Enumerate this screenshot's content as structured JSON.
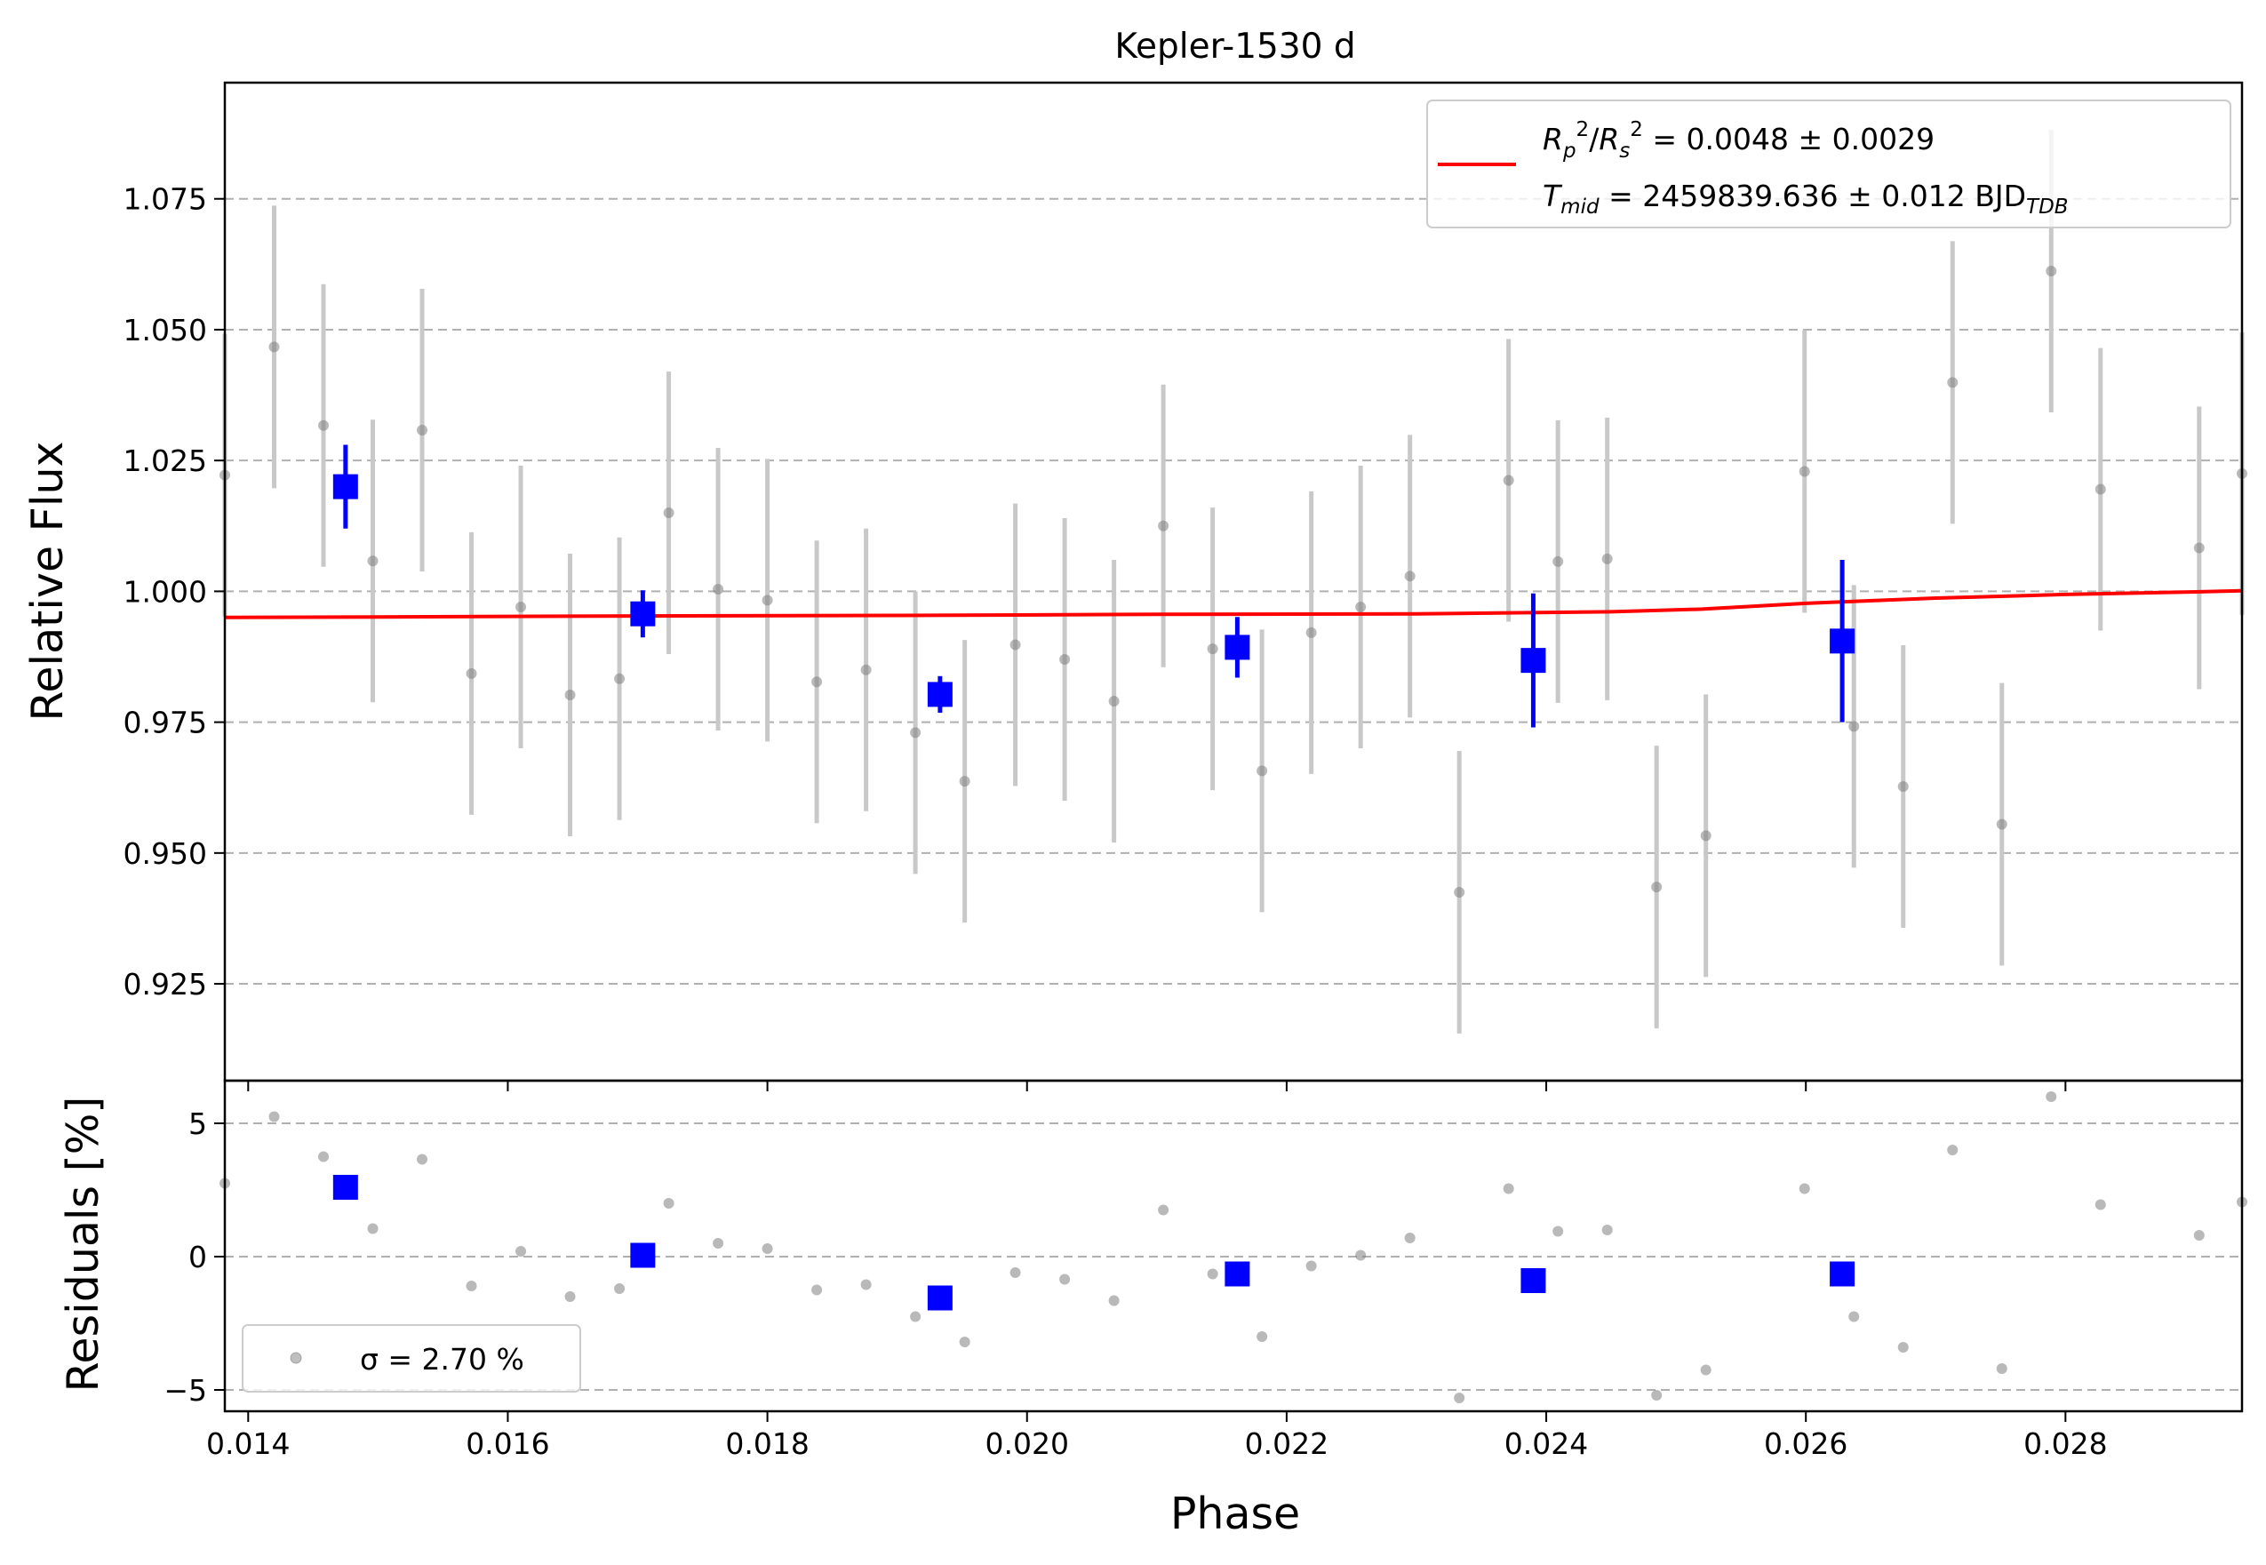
{
  "chart_data": [
    {
      "panel": "main",
      "type": "scatter",
      "title": "Kepler-1530 d",
      "xlabel": "",
      "ylabel": "Relative Flux",
      "xlim": [
        0.01382,
        0.02936
      ],
      "ylim": [
        0.9065,
        1.0972
      ],
      "grid": "horizontal dashed",
      "xticks": [
        "0.014",
        "0.016",
        "0.018",
        "0.020",
        "0.022",
        "0.024",
        "0.026",
        "0.028"
      ],
      "yticks": [
        "0.925",
        "0.950",
        "0.975",
        "1.000",
        "1.025",
        "1.050",
        "1.075"
      ],
      "legend": {
        "placement": "top-right",
        "line1": "R_p^2/R_s^2 = 0.0048 ± 0.0029",
        "line2": "T_mid = 2459839.636 ± 0.012 BJD_TDB"
      },
      "colors": {
        "raw": "#808080",
        "errorbar": "#c8c8c8",
        "binned": "#0000ff",
        "model": "#ff0000"
      },
      "series": [
        {
          "kind": "raw",
          "x": [
            0.01382,
            0.0142,
            0.01458,
            0.01496,
            0.01534,
            0.01572,
            0.0161,
            0.01648,
            0.01686,
            0.01724,
            0.01762,
            0.018,
            0.01838,
            0.01876,
            0.01914,
            0.01952,
            0.01991,
            0.02029,
            0.02067,
            0.02105,
            0.02143,
            0.02181,
            0.02219,
            0.02257,
            0.02295,
            0.02333,
            0.02371,
            0.02409,
            0.02447,
            0.02485,
            0.02523,
            0.02599,
            0.02637,
            0.02675,
            0.02713,
            0.02751,
            0.02789,
            0.02827,
            0.02903,
            0.02936
          ],
          "y": [
            1.0222,
            1.0467,
            1.0317,
            1.0058,
            1.0308,
            0.9843,
            0.997,
            0.9802,
            0.9833,
            1.015,
            1.0004,
            0.9983,
            0.9827,
            0.985,
            0.973,
            0.9637,
            0.9898,
            0.987,
            0.979,
            1.0125,
            0.989,
            0.9657,
            0.9921,
            0.997,
            1.0029,
            0.9425,
            1.0212,
            1.0057,
            1.0062,
            0.9435,
            0.9533,
            1.0229,
            0.9742,
            0.9627,
            1.0399,
            0.9555,
            1.0612,
            1.0195,
            1.0083,
            1.0225
          ],
          "err": [
            0.027,
            0.027,
            0.027,
            0.027,
            0.027,
            0.027,
            0.027,
            0.027,
            0.027,
            0.027,
            0.027,
            0.027,
            0.027,
            0.027,
            0.027,
            0.027,
            0.027,
            0.027,
            0.027,
            0.027,
            0.027,
            0.027,
            0.027,
            0.027,
            0.027,
            0.027,
            0.027,
            0.027,
            0.027,
            0.027,
            0.027,
            0.027,
            0.027,
            0.027,
            0.027,
            0.027,
            0.027,
            0.027,
            0.027,
            0.027
          ]
        },
        {
          "kind": "binned",
          "x": [
            0.01475,
            0.01704,
            0.01933,
            0.02162,
            0.0239,
            0.02628
          ],
          "y": [
            1.02,
            0.9957,
            0.9803,
            0.9893,
            0.9868,
            0.9905
          ],
          "err": [
            0.008,
            0.0045,
            0.0035,
            0.0058,
            0.0128,
            0.0155
          ]
        },
        {
          "kind": "model",
          "x": [
            0.01382,
            0.015,
            0.017,
            0.019,
            0.021,
            0.023,
            0.0245,
            0.0252,
            0.026,
            0.027,
            0.028,
            0.029,
            0.02936
          ],
          "y": [
            0.995,
            0.9951,
            0.9953,
            0.9954,
            0.9956,
            0.9957,
            0.9961,
            0.9966,
            0.9977,
            0.9987,
            0.9994,
            0.9999,
            1.0001
          ]
        }
      ]
    },
    {
      "panel": "residuals",
      "type": "scatter",
      "xlabel": "Phase",
      "ylabel": "Residuals [%]",
      "xlim": [
        0.01382,
        0.02936
      ],
      "ylim": [
        -5.8,
        6.6
      ],
      "grid": "horizontal dashed",
      "xticks": [
        "0.014",
        "0.016",
        "0.018",
        "0.020",
        "0.022",
        "0.024",
        "0.026",
        "0.028"
      ],
      "yticks": [
        "−5",
        "0",
        "5"
      ],
      "legend": {
        "placement": "bottom-left",
        "label": "σ = 2.70 %"
      },
      "series": [
        {
          "kind": "raw",
          "x": [
            0.01382,
            0.0142,
            0.01458,
            0.01496,
            0.01534,
            0.01572,
            0.0161,
            0.01648,
            0.01686,
            0.01724,
            0.01762,
            0.018,
            0.01838,
            0.01876,
            0.01914,
            0.01952,
            0.01991,
            0.02029,
            0.02067,
            0.02105,
            0.02143,
            0.02181,
            0.02219,
            0.02257,
            0.02295,
            0.02333,
            0.02371,
            0.02409,
            0.02447,
            0.02485,
            0.02523,
            0.02599,
            0.02637,
            0.02675,
            0.02713,
            0.02751,
            0.02789,
            0.02827,
            0.02903,
            0.02936
          ],
          "y": [
            2.75,
            5.25,
            3.75,
            1.05,
            3.65,
            -1.1,
            0.2,
            -1.5,
            -1.2,
            2.0,
            0.5,
            0.3,
            -1.25,
            -1.05,
            -2.25,
            -3.2,
            -0.6,
            -0.85,
            -1.65,
            1.75,
            -0.65,
            -3.0,
            -0.35,
            0.05,
            0.7,
            -5.3,
            2.55,
            0.95,
            1.0,
            -5.2,
            -4.25,
            2.55,
            -2.25,
            -3.4,
            4.0,
            -4.2,
            6.0,
            1.95,
            0.8,
            2.05
          ]
        },
        {
          "kind": "binned",
          "x": [
            0.01475,
            0.01704,
            0.01933,
            0.02162,
            0.0239,
            0.02628
          ],
          "y": [
            2.6,
            0.05,
            -1.55,
            -0.65,
            -0.9,
            -0.65
          ]
        }
      ]
    }
  ]
}
